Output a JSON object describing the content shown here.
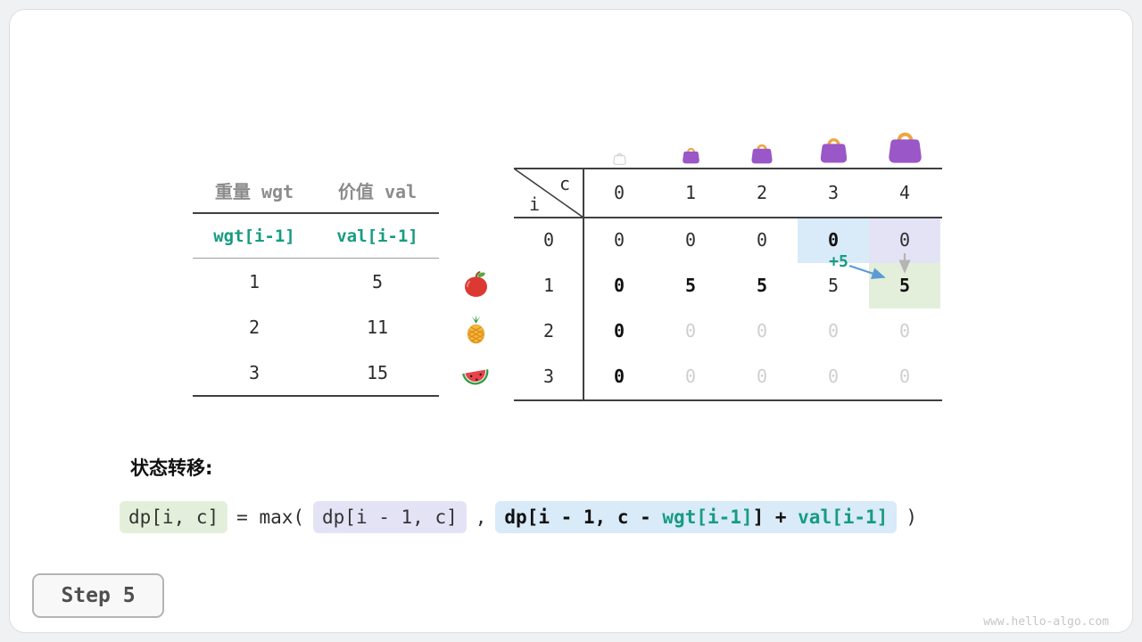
{
  "page": {
    "step_label": "Step 5",
    "watermark": "www.hello-algo.com"
  },
  "colors": {
    "teal": "#169c80",
    "hl_blue": "#d9eaf8",
    "hl_lavender": "#e4e3f6",
    "hl_green": "#e3efda",
    "arrow_blue": "#5b9bd5",
    "arrow_gray": "#b5b5b5",
    "bag_purple": "#9a57c7",
    "bag_handle": "#eda63f"
  },
  "item_table": {
    "col_headers": [
      "重量 wgt",
      "价值 val"
    ],
    "index_row": [
      "wgt[i-1]",
      "val[i-1]"
    ],
    "rows": [
      {
        "wgt": "1",
        "val": "5",
        "fruit": "apple-icon"
      },
      {
        "wgt": "2",
        "val": "11",
        "fruit": "pineapple-icon"
      },
      {
        "wgt": "3",
        "val": "15",
        "fruit": "watermelon-icon"
      }
    ]
  },
  "dp_table": {
    "corner": {
      "top": "c",
      "bottom": "i"
    },
    "col_headers": [
      "0",
      "1",
      "2",
      "3",
      "4"
    ],
    "row_headers": [
      "0",
      "1",
      "2",
      "3"
    ],
    "bag_icons": [
      "bag-empty-icon",
      "bag-icon-1",
      "bag-icon-2",
      "bag-icon-3",
      "bag-icon-4"
    ],
    "annotation": "+5",
    "rows": [
      [
        {
          "v": "0"
        },
        {
          "v": "0"
        },
        {
          "v": "0"
        },
        {
          "v": "0",
          "bold": true,
          "hl": "blue"
        },
        {
          "v": "0",
          "hl": "lavender"
        }
      ],
      [
        {
          "v": "0",
          "bold": true
        },
        {
          "v": "5",
          "bold": true
        },
        {
          "v": "5",
          "bold": true
        },
        {
          "v": "5"
        },
        {
          "v": "5",
          "bold": true,
          "hl": "green"
        }
      ],
      [
        {
          "v": "0",
          "bold": true
        },
        {
          "v": "0",
          "faded": true
        },
        {
          "v": "0",
          "faded": true
        },
        {
          "v": "0",
          "faded": true
        },
        {
          "v": "0",
          "faded": true
        }
      ],
      [
        {
          "v": "0",
          "bold": true
        },
        {
          "v": "0",
          "faded": true
        },
        {
          "v": "0",
          "faded": true
        },
        {
          "v": "0",
          "faded": true
        },
        {
          "v": "0",
          "faded": true
        }
      ]
    ]
  },
  "formula": {
    "heading": "状态转移:",
    "lhs": "dp[i, c]",
    "op": "= max(",
    "arg1": "dp[i - 1, c]",
    "comma": ",",
    "arg2_prefix": "dp[i - 1, c - ",
    "arg2_wgt": "wgt[i-1]",
    "arg2_bracket": "]",
    "arg2_plus": " + ",
    "arg2_val": "val[i-1]",
    "close": ")"
  }
}
